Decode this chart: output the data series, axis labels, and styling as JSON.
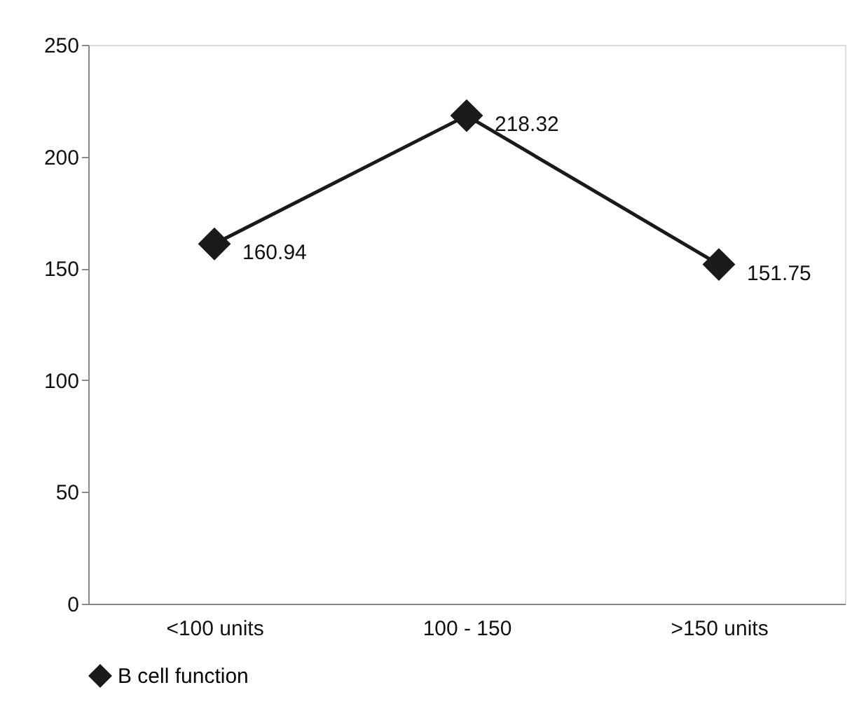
{
  "chart_data": {
    "type": "line",
    "categories": [
      "<100 units",
      "100 - 150",
      ">150 units"
    ],
    "series": [
      {
        "name": "B cell function",
        "color": "#1a1a1a",
        "values": [
          160.94,
          218.32,
          151.75
        ]
      }
    ],
    "ylim": [
      0,
      250
    ],
    "yticks": [
      0,
      50,
      100,
      150,
      200,
      250
    ],
    "grid": false,
    "legend": "bottom left",
    "marker": "diamond",
    "line_style": "solid",
    "data_labels": true
  }
}
